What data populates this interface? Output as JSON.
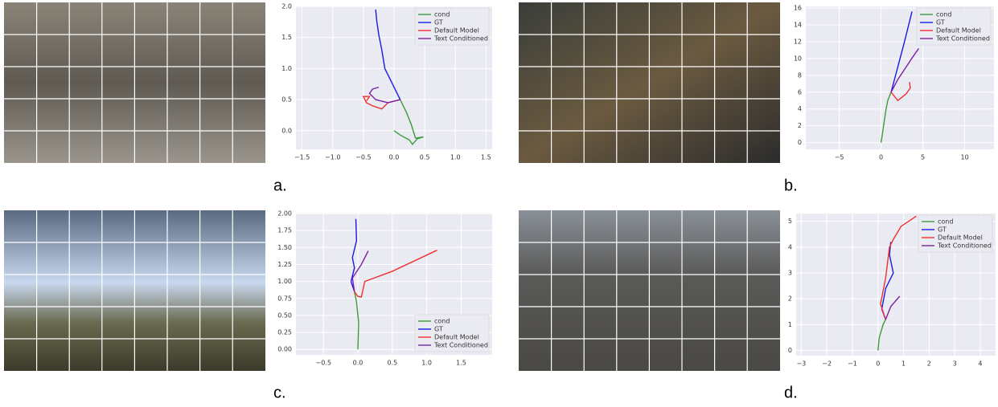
{
  "captions": [
    "a.",
    "b.",
    "c.",
    "d."
  ],
  "chart_data": [
    {
      "type": "line",
      "grid": true,
      "legend": "upper right",
      "xlim": [
        -1.6,
        1.6
      ],
      "ylim": [
        -0.3,
        2.0
      ],
      "xticks": [
        {
          "value": -1.5,
          "label": "−1.5"
        },
        {
          "value": -1.0,
          "label": "−1.0"
        },
        {
          "value": -0.5,
          "label": "−0.5"
        },
        {
          "value": 0,
          "label": "0.0"
        },
        {
          "value": 0.5,
          "label": "0.5"
        },
        {
          "value": 1.0,
          "label": "1.0"
        },
        {
          "value": 1.5,
          "label": "1.5"
        }
      ],
      "yticks": [
        {
          "value": 0,
          "label": "0.0"
        },
        {
          "value": 0.5,
          "label": "0.5"
        },
        {
          "value": 1.0,
          "label": "1.0"
        },
        {
          "value": 1.5,
          "label": "1.5"
        },
        {
          "value": 2.0,
          "label": "2.0"
        }
      ],
      "series": [
        {
          "name": "cond",
          "color": "#3c9a3c",
          "x": [
            0,
            0.1,
            0.25,
            0.3,
            0.38,
            0.48,
            0.35,
            0.28,
            0.2,
            0.1
          ],
          "values": [
            0,
            -0.07,
            -0.15,
            -0.22,
            -0.13,
            -0.1,
            -0.12,
            0.1,
            0.3,
            0.5
          ]
        },
        {
          "name": "GT",
          "color": "#1a1ae6",
          "x": [
            0.1,
            -0.05,
            -0.15,
            -0.2,
            -0.25,
            -0.28,
            -0.3
          ],
          "values": [
            0.5,
            0.8,
            1.0,
            1.3,
            1.55,
            1.75,
            1.95
          ]
        },
        {
          "name": "Default Model",
          "color": "#f03030",
          "x": [
            0.1,
            -0.1,
            -0.2,
            -0.35,
            -0.45,
            -0.5,
            -0.4,
            -0.45
          ],
          "values": [
            0.5,
            0.45,
            0.35,
            0.4,
            0.45,
            0.55,
            0.55,
            0.48
          ]
        },
        {
          "name": "Text Conditioned",
          "color": "#7a1fa2",
          "x": [
            0.1,
            -0.1,
            -0.3,
            -0.4,
            -0.35,
            -0.25
          ],
          "values": [
            0.5,
            0.45,
            0.5,
            0.6,
            0.67,
            0.7
          ]
        }
      ]
    },
    {
      "type": "line",
      "grid": true,
      "legend": "upper right",
      "xlim": [
        -9,
        13.5
      ],
      "ylim": [
        -0.8,
        16.2
      ],
      "xticks": [
        {
          "value": -5,
          "label": "−5"
        },
        0,
        5,
        10
      ],
      "yticks": [
        0,
        2,
        4,
        6,
        8,
        10,
        12,
        14,
        16
      ],
      "series": [
        {
          "name": "cond",
          "color": "#3c9a3c",
          "x": [
            0,
            0.3,
            0.6,
            0.8,
            1.2
          ],
          "values": [
            0,
            2,
            4,
            5,
            6
          ]
        },
        {
          "name": "GT",
          "color": "#1a1ae6",
          "x": [
            1.2,
            2,
            2.8,
            3.3,
            3.7
          ],
          "values": [
            6,
            9,
            12,
            14,
            15.6
          ]
        },
        {
          "name": "Default Model",
          "color": "#f03030",
          "x": [
            1.2,
            2,
            3,
            3.5,
            3.4
          ],
          "values": [
            6,
            5,
            5.8,
            6.5,
            7.2
          ]
        },
        {
          "name": "Text Conditioned",
          "color": "#7a1fa2",
          "x": [
            1.2,
            2,
            3,
            3.8,
            4.5
          ],
          "values": [
            6,
            7.5,
            9,
            10.2,
            11.2
          ]
        }
      ]
    },
    {
      "type": "line",
      "grid": true,
      "legend": "lower right",
      "xlim": [
        -0.9,
        1.95
      ],
      "ylim": [
        -0.08,
        2.0
      ],
      "xticks": [
        {
          "value": -0.5,
          "label": "−0.5"
        },
        {
          "value": 0,
          "label": "0.0"
        },
        0.5,
        {
          "value": 1.0,
          "label": "1.0"
        },
        1.5
      ],
      "yticks": [
        {
          "value": 0,
          "label": "0.00"
        },
        0.25,
        {
          "value": 0.5,
          "label": "0.50"
        },
        0.75,
        {
          "value": 1.0,
          "label": "1.00"
        },
        1.25,
        {
          "value": 1.5,
          "label": "1.50"
        },
        1.75,
        {
          "value": 2.0,
          "label": "2.00"
        }
      ],
      "series": [
        {
          "name": "cond",
          "color": "#3c9a3c",
          "x": [
            0,
            0.01,
            -0.02,
            -0.05
          ],
          "values": [
            0,
            0.4,
            0.7,
            0.85
          ]
        },
        {
          "name": "GT",
          "color": "#1a1ae6",
          "x": [
            -0.05,
            -0.1,
            -0.05,
            -0.08,
            -0.02,
            -0.03
          ],
          "values": [
            0.85,
            1.0,
            1.2,
            1.35,
            1.6,
            1.92
          ]
        },
        {
          "name": "Default Model",
          "color": "#f03030",
          "x": [
            -0.05,
            0.0,
            0.05,
            0.1,
            0.5,
            1.15
          ],
          "values": [
            0.85,
            0.78,
            0.77,
            1.0,
            1.15,
            1.46
          ]
        },
        {
          "name": "Text Conditioned",
          "color": "#7a1fa2",
          "x": [
            -0.05,
            -0.08,
            0.05,
            0.1,
            0.15
          ],
          "values": [
            0.85,
            1.05,
            1.25,
            1.35,
            1.45
          ]
        }
      ]
    },
    {
      "type": "line",
      "grid": true,
      "legend": "upper right",
      "xlim": [
        -3.2,
        4.6
      ],
      "ylim": [
        -0.2,
        5.3
      ],
      "xticks": [
        {
          "value": -3,
          "label": "−3"
        },
        {
          "value": -2,
          "label": "−2"
        },
        {
          "value": -1,
          "label": "−1"
        },
        0,
        1,
        2,
        3,
        4
      ],
      "yticks": [
        0,
        1,
        2,
        3,
        4,
        5
      ],
      "series": [
        {
          "name": "cond",
          "color": "#3c9a3c",
          "x": [
            0,
            0.05,
            0.2,
            0.3
          ],
          "values": [
            0,
            0.5,
            1,
            1.2
          ]
        },
        {
          "name": "GT",
          "color": "#1a1ae6",
          "x": [
            0.3,
            0.15,
            0.3,
            0.6,
            0.45,
            0.5
          ],
          "values": [
            1.2,
            1.6,
            2.4,
            3.0,
            3.7,
            4.2
          ]
        },
        {
          "name": "Default Model",
          "color": "#f03030",
          "x": [
            0.3,
            0.1,
            0.3,
            0.45,
            0.6,
            0.9,
            1.5
          ],
          "values": [
            1.2,
            1.8,
            2.8,
            4.0,
            4.3,
            4.8,
            5.2
          ]
        },
        {
          "name": "Text Conditioned",
          "color": "#7a1fa2",
          "x": [
            0.3,
            0.5,
            0.85
          ],
          "values": [
            1.2,
            1.7,
            2.1
          ]
        }
      ]
    }
  ]
}
